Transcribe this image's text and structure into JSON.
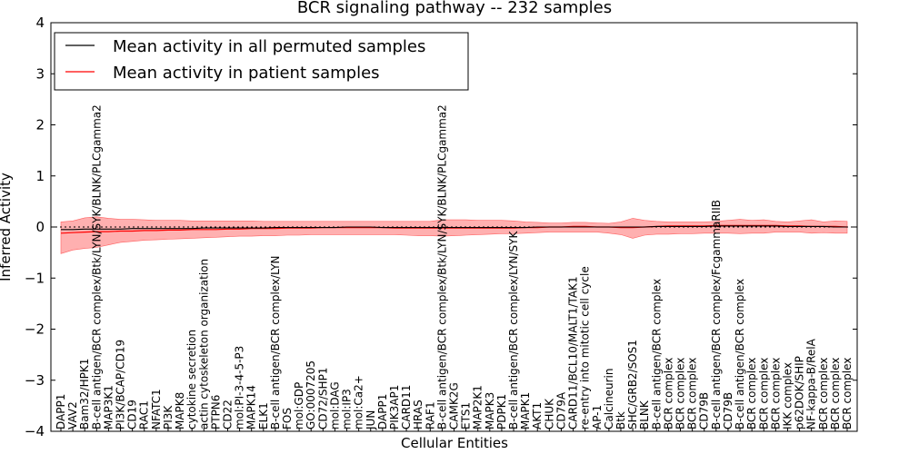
{
  "chart_data": {
    "type": "line",
    "title": "BCR signaling pathway -- 232 samples",
    "xlabel": "Cellular Entities",
    "ylabel": "Inferred Activity",
    "ylim": [
      -4,
      4
    ],
    "yticks": [
      -4,
      -3,
      -2,
      -1,
      0,
      1,
      2,
      3,
      4
    ],
    "ytick_labels": [
      "−4",
      "−3",
      "−2",
      "−1",
      "0",
      "1",
      "2",
      "3",
      "4"
    ],
    "reference_line_y": 0,
    "legend": {
      "placement": "top-left",
      "entries": [
        {
          "label": "Mean activity in all permuted samples",
          "color": "#000000"
        },
        {
          "label": "Mean activity in patient samples",
          "color": "#ff0000"
        }
      ]
    },
    "categories": [
      "DAPP1",
      "VAV2",
      "Bam32/HPK1",
      "B-cell antigen/BCR complex/Btk/LYN/SYK/BLNK/PLCgamma2",
      "MAP3K1",
      "PI3K/BCAP/CD19",
      "CD19",
      "RAC1",
      "NFATC1",
      "PI3K",
      "MAPK8",
      "cytokine secretion",
      "actin cytoskeleton organization",
      "PTPN6",
      "CD22",
      "mol:PI-3-4-5-P3",
      "MAPK14",
      "ELK1",
      "B-cell antigen/BCR complex/LYN",
      "FOS",
      "mol:GDP",
      "GO:0007205",
      "CD72/SHP1",
      "mol:DAG",
      "mol:IP3",
      "mol:Ca2+",
      "JUN",
      "DAPP1",
      "PIK3AP1",
      "CARD11",
      "HRAS",
      "RAF1",
      "B-cell antigen/BCR complex/Btk/LYN/SYK/BLNK/PLCgamma2",
      "CAMK2G",
      "ETS1",
      "MAP2K1",
      "MAPK3",
      "PDPK1",
      "B-cell antigen/BCR complex/LYN/SYK",
      "MAPK1",
      "AKT1",
      "CHUK",
      "CD79A",
      "CARD11/BCL10/MALT1/TAK1",
      "re-entry into mitotic cell cycle",
      "AP-1",
      "Calcineurin",
      "Btk",
      "SHC/GRB2/SOS1",
      "BLNK",
      "B-cell antigen/BCR complex",
      "BCR complex",
      "BCR complex",
      "BCR complex",
      "CD79B",
      "B-cell antigen/BCR complex/FcgammaRIIB",
      "CD79B",
      "B-cell antigen/BCR complex",
      "BCR complex",
      "BCR complex",
      "BCR complex",
      "IKK complex",
      "p62DOK/SHIP",
      "NF-kappa-B/RelA",
      "BCR complex",
      "BCR complex",
      "BCR complex"
    ],
    "series": [
      {
        "name": "Mean activity in patient samples",
        "values": [
          -0.12,
          -0.11,
          -0.1,
          -0.09,
          -0.09,
          -0.08,
          -0.08,
          -0.07,
          -0.07,
          -0.06,
          -0.06,
          -0.05,
          -0.05,
          -0.05,
          -0.04,
          -0.04,
          -0.03,
          -0.03,
          -0.03,
          -0.02,
          -0.02,
          -0.02,
          -0.01,
          -0.01,
          -0.01,
          -0.01,
          -0.01,
          -0.01,
          -0.02,
          -0.02,
          -0.02,
          -0.02,
          -0.02,
          -0.02,
          -0.02,
          -0.02,
          -0.02,
          -0.02,
          -0.02,
          -0.01,
          -0.01,
          0.0,
          0.0,
          0.01,
          0.01,
          0.0,
          0.0,
          -0.01,
          -0.01,
          0.0,
          0.01,
          0.02,
          0.02,
          0.02,
          0.02,
          0.03,
          0.03,
          0.03,
          0.03,
          0.03,
          0.03,
          0.02,
          0.02,
          0.01,
          0.01,
          0.01,
          0.0
        ],
        "upper": [
          0.1,
          0.12,
          0.18,
          0.2,
          0.17,
          0.15,
          0.15,
          0.14,
          0.13,
          0.13,
          0.13,
          0.12,
          0.12,
          0.12,
          0.12,
          0.12,
          0.12,
          0.11,
          0.11,
          0.11,
          0.11,
          0.11,
          0.11,
          0.11,
          0.11,
          0.11,
          0.11,
          0.11,
          0.11,
          0.11,
          0.11,
          0.11,
          0.14,
          0.14,
          0.14,
          0.13,
          0.13,
          0.13,
          0.12,
          0.1,
          0.09,
          0.08,
          0.08,
          0.09,
          0.09,
          0.08,
          0.07,
          0.1,
          0.17,
          0.13,
          0.11,
          0.1,
          0.1,
          0.1,
          0.1,
          0.11,
          0.13,
          0.15,
          0.13,
          0.14,
          0.11,
          0.1,
          0.12,
          0.14,
          0.1,
          0.12,
          0.11
        ],
        "lower": [
          -0.52,
          -0.45,
          -0.42,
          -0.4,
          -0.35,
          -0.3,
          -0.28,
          -0.26,
          -0.25,
          -0.24,
          -0.23,
          -0.22,
          -0.21,
          -0.2,
          -0.19,
          -0.18,
          -0.18,
          -0.17,
          -0.17,
          -0.16,
          -0.16,
          -0.15,
          -0.15,
          -0.15,
          -0.15,
          -0.15,
          -0.15,
          -0.15,
          -0.15,
          -0.16,
          -0.17,
          -0.17,
          -0.18,
          -0.17,
          -0.16,
          -0.15,
          -0.14,
          -0.13,
          -0.13,
          -0.12,
          -0.11,
          -0.1,
          -0.1,
          -0.1,
          -0.1,
          -0.1,
          -0.12,
          -0.15,
          -0.22,
          -0.16,
          -0.14,
          -0.14,
          -0.13,
          -0.13,
          -0.12,
          -0.12,
          -0.12,
          -0.13,
          -0.12,
          -0.12,
          -0.1,
          -0.1,
          -0.1,
          -0.12,
          -0.11,
          -0.12,
          -0.12
        ]
      },
      {
        "name": "Mean activity in all permuted samples",
        "values": [
          -0.05,
          -0.05,
          -0.04,
          -0.04,
          -0.04,
          -0.04,
          -0.03,
          -0.03,
          -0.03,
          -0.03,
          -0.03,
          -0.03,
          -0.02,
          -0.02,
          -0.02,
          -0.02,
          -0.02,
          -0.02,
          -0.01,
          -0.01,
          -0.01,
          -0.01,
          -0.01,
          -0.01,
          0.0,
          0.0,
          0.0,
          -0.01,
          -0.01,
          -0.01,
          -0.01,
          -0.01,
          -0.01,
          -0.01,
          -0.01,
          -0.01,
          -0.01,
          -0.01,
          -0.01,
          -0.01,
          0.0,
          0.0,
          0.0,
          0.0,
          0.0,
          0.0,
          0.0,
          0.0,
          0.0,
          0.0,
          0.01,
          0.01,
          0.01,
          0.01,
          0.01,
          0.02,
          0.02,
          0.02,
          0.02,
          0.02,
          0.02,
          0.01,
          0.01,
          0.01,
          0.01,
          0.0,
          0.0
        ]
      }
    ]
  }
}
